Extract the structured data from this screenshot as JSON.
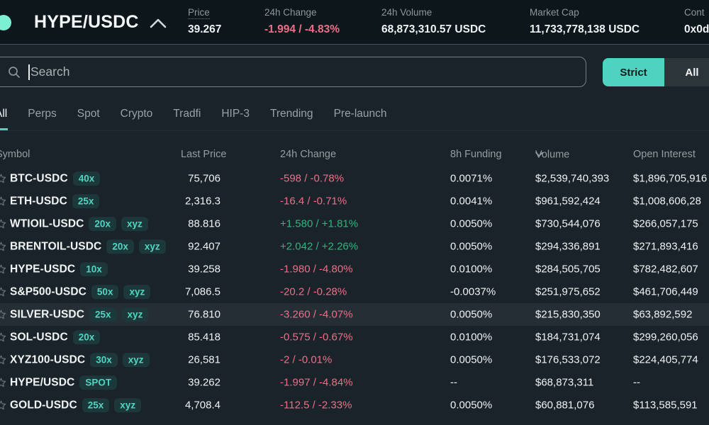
{
  "header": {
    "pair": "HYPE/USDC",
    "stats": [
      {
        "label": "Price",
        "value": "39.267",
        "tone": "neutral",
        "dotted": true
      },
      {
        "label": "24h Change",
        "value": "-1.994 / -4.83%",
        "tone": "negative",
        "dotted": false
      },
      {
        "label": "24h Volume",
        "value": "68,873,310.57 USDC",
        "tone": "neutral",
        "dotted": false
      },
      {
        "label": "Market Cap",
        "value": "11,733,778,138 USDC",
        "tone": "neutral",
        "dotted": false
      },
      {
        "label": "Cont",
        "value": "0x0d",
        "tone": "neutral",
        "dotted": false
      }
    ]
  },
  "search": {
    "placeholder": "Search",
    "strict_label": "Strict",
    "all_label": "All"
  },
  "tabs": [
    {
      "label": "All",
      "active": true
    },
    {
      "label": "Perps",
      "active": false
    },
    {
      "label": "Spot",
      "active": false
    },
    {
      "label": "Crypto",
      "active": false
    },
    {
      "label": "Tradfi",
      "active": false
    },
    {
      "label": "HIP-3",
      "active": false
    },
    {
      "label": "Trending",
      "active": false
    },
    {
      "label": "Pre-launch",
      "active": false
    }
  ],
  "table": {
    "columns": [
      "Symbol",
      "Last Price",
      "24h Change",
      "8h Funding",
      "Volume",
      "Open Interest"
    ],
    "sort_column": "Volume",
    "rows": [
      {
        "symbol": "BTC-USDC",
        "badges": [
          "40x"
        ],
        "last_price": "75,706",
        "change": "-598 / -0.78%",
        "dir": "down",
        "funding": "0.0071%",
        "volume": "$2,539,740,393",
        "open_interest": "$1,896,705,916",
        "highlighted": false
      },
      {
        "symbol": "ETH-USDC",
        "badges": [
          "25x"
        ],
        "last_price": "2,316.3",
        "change": "-16.4 / -0.71%",
        "dir": "down",
        "funding": "0.0041%",
        "volume": "$961,592,424",
        "open_interest": "$1,008,606,28",
        "highlighted": false
      },
      {
        "symbol": "WTIOIL-USDC",
        "badges": [
          "20x",
          "xyz"
        ],
        "last_price": "88.816",
        "change": "+1.580 / +1.81%",
        "dir": "up",
        "funding": "0.0050%",
        "volume": "$730,544,076",
        "open_interest": "$266,057,175",
        "highlighted": false
      },
      {
        "symbol": "BRENTOIL-USDC",
        "badges": [
          "20x",
          "xyz"
        ],
        "last_price": "92.407",
        "change": "+2.042 / +2.26%",
        "dir": "up",
        "funding": "0.0050%",
        "volume": "$294,336,891",
        "open_interest": "$271,893,416",
        "highlighted": false
      },
      {
        "symbol": "HYPE-USDC",
        "badges": [
          "10x"
        ],
        "last_price": "39.258",
        "change": "-1.980 / -4.80%",
        "dir": "down",
        "funding": "0.0100%",
        "volume": "$284,505,705",
        "open_interest": "$782,482,607",
        "highlighted": false
      },
      {
        "symbol": "S&P500-USDC",
        "badges": [
          "50x",
          "xyz"
        ],
        "last_price": "7,086.5",
        "change": "-20.2 / -0.28%",
        "dir": "down",
        "funding": "-0.0037%",
        "volume": "$251,975,652",
        "open_interest": "$461,706,449",
        "highlighted": false
      },
      {
        "symbol": "SILVER-USDC",
        "badges": [
          "25x",
          "xyz"
        ],
        "last_price": "76.810",
        "change": "-3.260 / -4.07%",
        "dir": "down",
        "funding": "0.0050%",
        "volume": "$215,830,350",
        "open_interest": "$63,892,592",
        "highlighted": true
      },
      {
        "symbol": "SOL-USDC",
        "badges": [
          "20x"
        ],
        "last_price": "85.418",
        "change": "-0.575 / -0.67%",
        "dir": "down",
        "funding": "0.0100%",
        "volume": "$184,731,074",
        "open_interest": "$299,260,056",
        "highlighted": false
      },
      {
        "symbol": "XYZ100-USDC",
        "badges": [
          "30x",
          "xyz"
        ],
        "last_price": "26,581",
        "change": "-2 / -0.01%",
        "dir": "down",
        "funding": "0.0050%",
        "volume": "$176,533,072",
        "open_interest": "$224,405,774",
        "highlighted": false
      },
      {
        "symbol": "HYPE/USDC",
        "badges": [
          "SPOT"
        ],
        "last_price": "39.262",
        "change": "-1.997 / -4.84%",
        "dir": "down",
        "funding": "--",
        "volume": "$68,873,311",
        "open_interest": "--",
        "highlighted": false
      },
      {
        "symbol": "GOLD-USDC",
        "badges": [
          "25x",
          "xyz"
        ],
        "last_price": "4,708.4",
        "change": "-112.5 / -2.33%",
        "dir": "down",
        "funding": "0.0050%",
        "volume": "$60,881,076",
        "open_interest": "$113,585,591",
        "highlighted": false
      }
    ]
  },
  "colors": {
    "accent_mint": "#50d2c1",
    "negative_red": "#ed6f87",
    "positive_green": "#2bb77f",
    "topbar_bg": "#0d161b",
    "main_bg": "#1a2329",
    "badge_bg": "#1d383a",
    "row_highlight": "#252e35"
  }
}
